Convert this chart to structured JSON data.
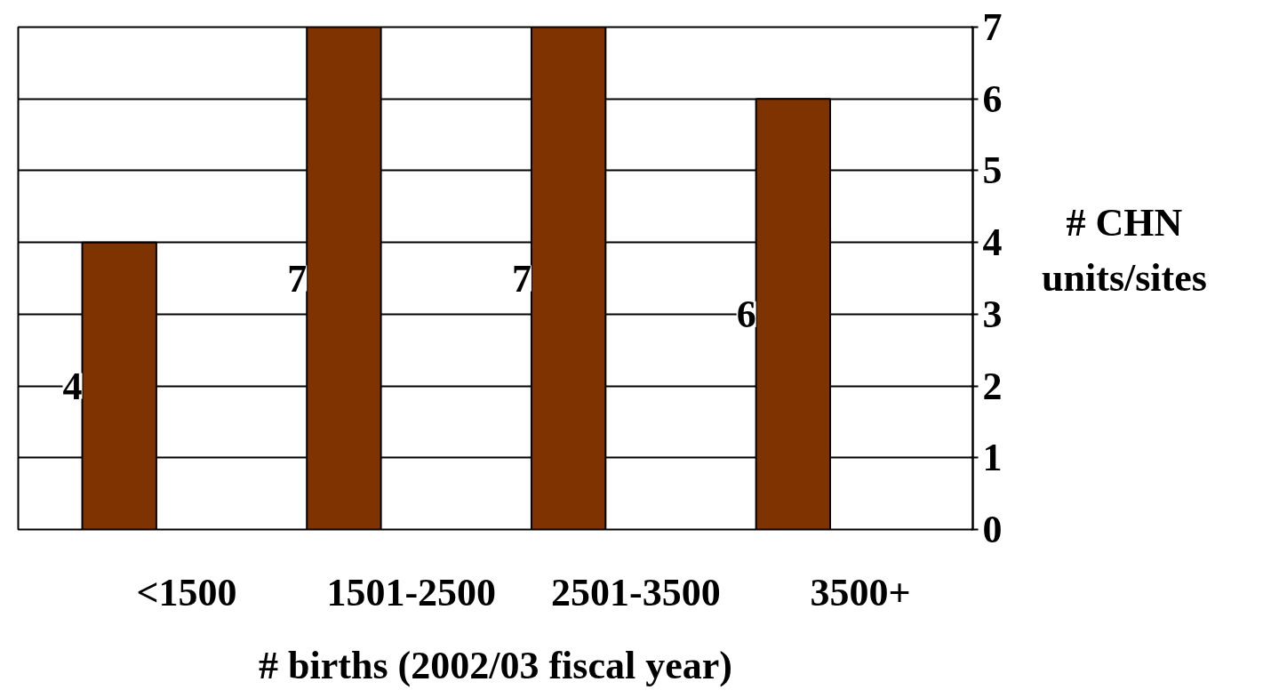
{
  "chart_data": {
    "type": "bar",
    "xlabel": "# births (2002/03 fiscal year)",
    "ylabel": "# CHN units/sites",
    "categories": [
      "<1500",
      "1501-2500",
      "2501-3500",
      "3500+"
    ],
    "values": [
      4,
      7,
      7,
      6
    ],
    "color": "#7f3300",
    "ylim": [
      0,
      7
    ],
    "yticks": [
      0,
      1,
      2,
      3,
      4,
      5,
      6,
      7
    ],
    "grid": "y",
    "data_labels": true
  }
}
